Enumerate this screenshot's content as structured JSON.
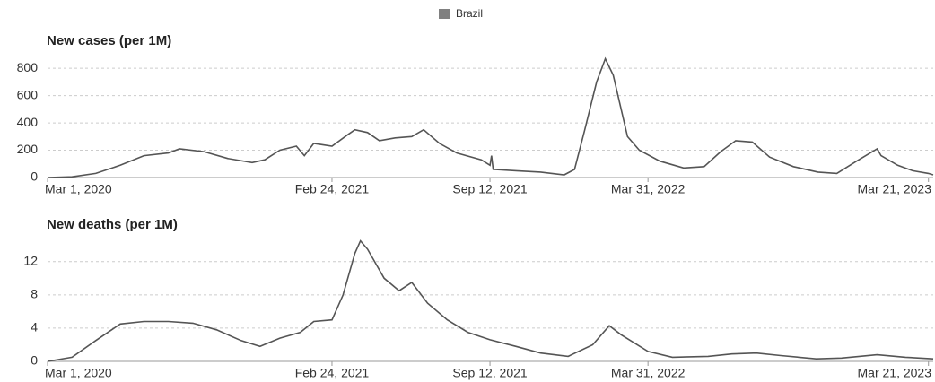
{
  "legend": {
    "name": "Brazil",
    "color": "#808080"
  },
  "chart_data": [
    {
      "type": "line",
      "title": "New cases (per 1M)",
      "x": [
        "2020-03-01",
        "2020-04-01",
        "2020-05-01",
        "2020-06-01",
        "2020-07-01",
        "2020-08-01",
        "2020-08-15",
        "2020-09-15",
        "2020-10-15",
        "2020-11-15",
        "2020-12-01",
        "2020-12-20",
        "2021-01-10",
        "2021-01-20",
        "2021-02-01",
        "2021-02-24",
        "2021-03-15",
        "2021-03-25",
        "2021-04-10",
        "2021-04-25",
        "2021-05-15",
        "2021-06-05",
        "2021-06-20",
        "2021-07-10",
        "2021-08-01",
        "2021-09-01",
        "2021-09-12",
        "2021-09-14",
        "2021-09-16",
        "2021-10-15",
        "2021-11-15",
        "2021-12-15",
        "2021-12-28",
        "2022-01-10",
        "2022-01-25",
        "2022-02-05",
        "2022-02-15",
        "2022-03-05",
        "2022-03-20",
        "2022-04-15",
        "2022-05-15",
        "2022-06-10",
        "2022-07-01",
        "2022-07-20",
        "2022-08-10",
        "2022-09-01",
        "2022-10-01",
        "2022-11-01",
        "2022-11-25",
        "2022-12-20",
        "2023-01-15",
        "2023-01-20",
        "2023-02-10",
        "2023-03-01",
        "2023-03-21",
        "2023-03-27"
      ],
      "series": [
        {
          "name": "Brazil",
          "color": "#555555",
          "values": [
            0,
            5,
            30,
            90,
            160,
            180,
            210,
            190,
            140,
            110,
            130,
            200,
            230,
            160,
            250,
            230,
            310,
            350,
            330,
            270,
            290,
            300,
            350,
            250,
            180,
            130,
            90,
            160,
            60,
            50,
            40,
            20,
            60,
            350,
            700,
            870,
            750,
            300,
            200,
            120,
            70,
            80,
            190,
            270,
            260,
            150,
            80,
            40,
            30,
            120,
            210,
            160,
            90,
            50,
            30,
            20
          ]
        }
      ],
      "xlim": [
        "2020-03-01",
        "2023-03-27"
      ],
      "xticks": [
        {
          "value": "2020-03-01",
          "label": "Mar 1, 2020"
        },
        {
          "value": "2021-02-24",
          "label": "Feb 24, 2021"
        },
        {
          "value": "2021-09-12",
          "label": "Sep 12, 2021"
        },
        {
          "value": "2022-03-31",
          "label": "Mar 31, 2022"
        },
        {
          "value": "2023-03-21",
          "label": "Mar 21, 2023"
        }
      ],
      "ylim": [
        0,
        880
      ],
      "yticks": [
        0,
        200,
        400,
        600,
        800
      ],
      "grid": true
    },
    {
      "type": "line",
      "title": "New deaths (per 1M)",
      "x": [
        "2020-03-01",
        "2020-04-01",
        "2020-05-01",
        "2020-06-01",
        "2020-07-01",
        "2020-08-01",
        "2020-09-01",
        "2020-10-01",
        "2020-11-01",
        "2020-11-25",
        "2020-12-20",
        "2021-01-15",
        "2021-02-01",
        "2021-02-24",
        "2021-03-10",
        "2021-03-25",
        "2021-04-01",
        "2021-04-10",
        "2021-05-01",
        "2021-05-20",
        "2021-06-05",
        "2021-06-25",
        "2021-07-20",
        "2021-08-15",
        "2021-09-12",
        "2021-10-15",
        "2021-11-15",
        "2021-12-20",
        "2022-01-20",
        "2022-02-10",
        "2022-02-25",
        "2022-03-31",
        "2022-05-01",
        "2022-06-15",
        "2022-07-15",
        "2022-08-15",
        "2022-09-15",
        "2022-10-30",
        "2022-12-01",
        "2023-01-15",
        "2023-02-20",
        "2023-03-27"
      ],
      "series": [
        {
          "name": "Brazil",
          "color": "#555555",
          "values": [
            0,
            0.5,
            2.5,
            4.5,
            4.8,
            4.8,
            4.6,
            3.8,
            2.5,
            1.8,
            2.8,
            3.5,
            4.8,
            5,
            8,
            13,
            14.5,
            13.5,
            10,
            8.5,
            9.5,
            7,
            5,
            3.5,
            2.6,
            1.8,
            1.0,
            0.6,
            2,
            4.3,
            3.2,
            1.2,
            0.5,
            0.6,
            0.9,
            1.0,
            0.7,
            0.3,
            0.4,
            0.8,
            0.5,
            0.3
          ]
        }
      ],
      "xlim": [
        "2020-03-01",
        "2023-03-27"
      ],
      "xticks": [
        {
          "value": "2020-03-01",
          "label": "Mar 1, 2020"
        },
        {
          "value": "2021-02-24",
          "label": "Feb 24, 2021"
        },
        {
          "value": "2021-09-12",
          "label": "Sep 12, 2021"
        },
        {
          "value": "2022-03-31",
          "label": "Mar 31, 2022"
        },
        {
          "value": "2023-03-21",
          "label": "Mar 21, 2023"
        }
      ],
      "ylim": [
        0,
        15
      ],
      "yticks": [
        0,
        4,
        8,
        12
      ],
      "grid": true
    }
  ]
}
